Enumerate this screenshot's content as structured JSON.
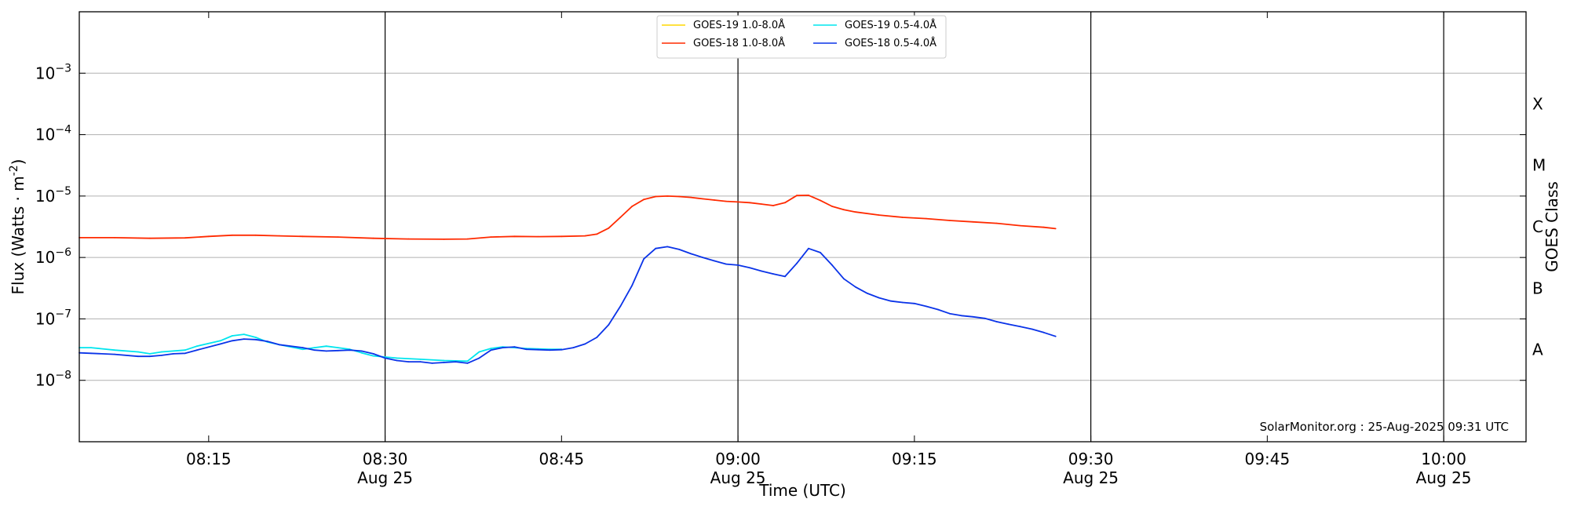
{
  "chart_data": {
    "type": "line",
    "title": "",
    "xlabel": "Time (UTC)",
    "ylabel": "Flux (Watts · m",
    "ylabel_sup": "-2",
    "ylabel_close": ")",
    "right_label": "GOES Class",
    "y_scale": "log",
    "ylim": [
      1e-09,
      0.01
    ],
    "xlim": [
      "2025-08-25 08:04",
      "2025-08-25 10:07"
    ],
    "grid": "horizontal",
    "legend_position": "top-center",
    "credit": "SolarMonitor.org : 25-Aug-2025 09:31 UTC",
    "y_ticks": [
      {
        "value": 1e-08,
        "base": "10",
        "exp": "−8"
      },
      {
        "value": 1e-07,
        "base": "10",
        "exp": "−7"
      },
      {
        "value": 1e-06,
        "base": "10",
        "exp": "−6"
      },
      {
        "value": 1e-05,
        "base": "10",
        "exp": "−5"
      },
      {
        "value": 0.0001,
        "base": "10",
        "exp": "−4"
      },
      {
        "value": 0.001,
        "base": "10",
        "exp": "−3"
      }
    ],
    "x_ticks": [
      {
        "time": "08:15",
        "label": "08:15",
        "sub": ""
      },
      {
        "time": "08:30",
        "label": "08:30",
        "sub": "Aug 25"
      },
      {
        "time": "08:45",
        "label": "08:45",
        "sub": ""
      },
      {
        "time": "09:00",
        "label": "09:00",
        "sub": "Aug 25"
      },
      {
        "time": "09:15",
        "label": "09:15",
        "sub": ""
      },
      {
        "time": "09:30",
        "label": "09:30",
        "sub": "Aug 25"
      },
      {
        "time": "09:45",
        "label": "09:45",
        "sub": ""
      },
      {
        "time": "10:00",
        "label": "10:00",
        "sub": "Aug 25"
      }
    ],
    "vlines": [
      "08:30",
      "09:00",
      "09:30",
      "10:00"
    ],
    "goes_classes": [
      {
        "label": "A",
        "value": 3.16e-08
      },
      {
        "label": "B",
        "value": 3.16e-07
      },
      {
        "label": "C",
        "value": 3.16e-06
      },
      {
        "label": "M",
        "value": 3.16e-05
      },
      {
        "label": "X",
        "value": 0.000316
      }
    ],
    "series": [
      {
        "name": "GOES-19 1.0-8.0Å",
        "color": "#FFD700",
        "x": [],
        "y": []
      },
      {
        "name": "GOES-18 1.0-8.0Å",
        "color": "#FF2A00",
        "x": [
          "08:04",
          "08:07",
          "08:10",
          "08:13",
          "08:15",
          "08:17",
          "08:19",
          "08:21",
          "08:23",
          "08:26",
          "08:29",
          "08:32",
          "08:35",
          "08:37",
          "08:39",
          "08:41",
          "08:43",
          "08:45",
          "08:47",
          "08:48",
          "08:49",
          "08:50",
          "08:51",
          "08:52",
          "08:53",
          "08:54",
          "08:55",
          "08:56",
          "08:57",
          "08:58",
          "08:59",
          "09:00",
          "09:01",
          "09:02",
          "09:03",
          "09:04",
          "09:05",
          "09:06",
          "09:07",
          "09:08",
          "09:09",
          "09:10",
          "09:12",
          "09:14",
          "09:16",
          "09:18",
          "09:20",
          "09:22",
          "09:24",
          "09:26",
          "09:27"
        ],
        "y": [
          2.1e-06,
          2.1e-06,
          2.05e-06,
          2.08e-06,
          2.2e-06,
          2.3e-06,
          2.3e-06,
          2.25e-06,
          2.2e-06,
          2.15e-06,
          2.05e-06,
          2e-06,
          1.98e-06,
          2e-06,
          2.15e-06,
          2.2e-06,
          2.18e-06,
          2.2e-06,
          2.25e-06,
          2.4e-06,
          3e-06,
          4.5e-06,
          6.8e-06,
          8.8e-06,
          9.8e-06,
          1e-05,
          9.8e-06,
          9.5e-06,
          9e-06,
          8.6e-06,
          8.2e-06,
          8e-06,
          7.8e-06,
          7.4e-06,
          7e-06,
          7.8e-06,
          1.02e-05,
          1.03e-05,
          8.5e-06,
          6.8e-06,
          6e-06,
          5.5e-06,
          4.9e-06,
          4.5e-06,
          4.3e-06,
          4e-06,
          3.8e-06,
          3.6e-06,
          3.3e-06,
          3.1e-06,
          2.95e-06
        ]
      },
      {
        "name": "GOES-19 0.5-4.0Å",
        "color": "#00E5EE",
        "x": [
          "08:04",
          "08:05",
          "08:07",
          "08:09",
          "08:10",
          "08:11",
          "08:13",
          "08:14",
          "08:16",
          "08:17",
          "08:18",
          "08:19",
          "08:20",
          "08:21",
          "08:23",
          "08:24",
          "08:25",
          "08:26",
          "08:27",
          "08:28",
          "08:29",
          "08:31",
          "08:33",
          "08:35",
          "08:37",
          "08:38",
          "08:39",
          "08:40",
          "08:42",
          "08:44",
          "08:45"
        ],
        "y": [
          3.4e-08,
          3.4e-08,
          3.1e-08,
          2.9e-08,
          2.7e-08,
          2.9e-08,
          3.1e-08,
          3.6e-08,
          4.4e-08,
          5.3e-08,
          5.6e-08,
          5e-08,
          4.2e-08,
          3.8e-08,
          3.2e-08,
          3.4e-08,
          3.6e-08,
          3.4e-08,
          3.2e-08,
          2.8e-08,
          2.5e-08,
          2.3e-08,
          2.2e-08,
          2.1e-08,
          2.05e-08,
          2.9e-08,
          3.3e-08,
          3.5e-08,
          3.3e-08,
          3.2e-08,
          3.2e-08
        ]
      },
      {
        "name": "GOES-18 0.5-4.0Å",
        "color": "#0A33E8",
        "x": [
          "08:04",
          "08:05",
          "08:07",
          "08:09",
          "08:10",
          "08:11",
          "08:12",
          "08:13",
          "08:14",
          "08:16",
          "08:17",
          "08:18",
          "08:19",
          "08:20",
          "08:21",
          "08:23",
          "08:24",
          "08:25",
          "08:26",
          "08:27",
          "08:28",
          "08:29",
          "08:30",
          "08:31",
          "08:32",
          "08:33",
          "08:34",
          "08:35",
          "08:36",
          "08:37",
          "08:38",
          "08:39",
          "08:40",
          "08:41",
          "08:42",
          "08:43",
          "08:44",
          "08:45",
          "08:46",
          "08:47",
          "08:48",
          "08:49",
          "08:50",
          "08:51",
          "08:52",
          "08:53",
          "08:54",
          "08:55",
          "08:56",
          "08:57",
          "08:58",
          "08:59",
          "09:00",
          "09:01",
          "09:02",
          "09:03",
          "09:04",
          "09:05",
          "09:06",
          "09:07",
          "09:08",
          "09:09",
          "09:10",
          "09:11",
          "09:12",
          "09:13",
          "09:14",
          "09:15",
          "09:16",
          "09:17",
          "09:18",
          "09:19",
          "09:20",
          "09:21",
          "09:22",
          "09:23",
          "09:24",
          "09:25",
          "09:26",
          "09:27"
        ],
        "y": [
          2.8e-08,
          2.75e-08,
          2.65e-08,
          2.45e-08,
          2.45e-08,
          2.55e-08,
          2.7e-08,
          2.75e-08,
          3.1e-08,
          3.9e-08,
          4.4e-08,
          4.7e-08,
          4.6e-08,
          4.3e-08,
          3.8e-08,
          3.4e-08,
          3.1e-08,
          3e-08,
          3.05e-08,
          3.1e-08,
          3e-08,
          2.7e-08,
          2.3e-08,
          2.1e-08,
          2e-08,
          2e-08,
          1.9e-08,
          1.95e-08,
          2e-08,
          1.9e-08,
          2.3e-08,
          3.1e-08,
          3.4e-08,
          3.5e-08,
          3.2e-08,
          3.15e-08,
          3.1e-08,
          3.15e-08,
          3.4e-08,
          3.9e-08,
          5e-08,
          8e-08,
          1.6e-07,
          3.5e-07,
          9.5e-07,
          1.4e-06,
          1.5e-06,
          1.35e-06,
          1.15e-06,
          1e-06,
          8.8e-07,
          7.8e-07,
          7.5e-07,
          6.8e-07,
          6e-07,
          5.4e-07,
          4.9e-07,
          8e-07,
          1.4e-06,
          1.2e-06,
          7.5e-07,
          4.5e-07,
          3.3e-07,
          2.6e-07,
          2.2e-07,
          1.95e-07,
          1.85e-07,
          1.78e-07,
          1.6e-07,
          1.42e-07,
          1.22e-07,
          1.13e-07,
          1.08e-07,
          1.02e-07,
          9e-08,
          8.2e-08,
          7.5e-08,
          6.8e-08,
          6e-08,
          5.2e-08
        ]
      }
    ]
  }
}
